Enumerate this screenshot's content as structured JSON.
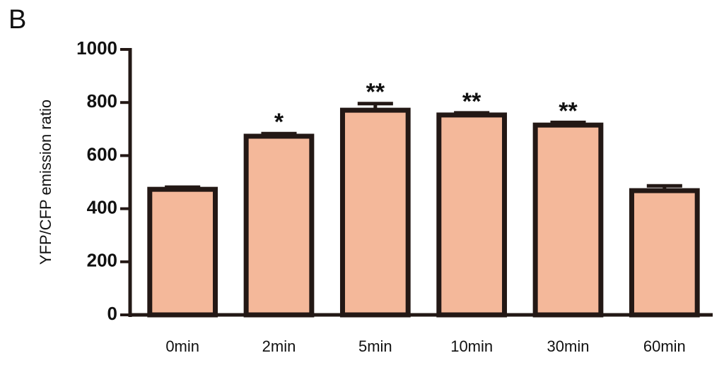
{
  "chart_data": {
    "type": "bar",
    "panel_label": "B",
    "y_label": "YFP/CFP emission ratio",
    "categories": [
      "0min",
      "2min",
      "5min",
      "10min",
      "30min",
      "60min"
    ],
    "values": [
      473,
      673,
      771,
      753,
      715,
      468
    ],
    "errors": [
      8,
      10,
      25,
      8,
      10,
      18
    ],
    "significance": [
      null,
      "*",
      "**",
      "**",
      "**",
      null
    ],
    "color": "#f4b89a",
    "ylim": [
      0,
      1000
    ],
    "yticks": [
      0,
      200,
      400,
      600,
      800,
      1000
    ],
    "grid": false
  }
}
